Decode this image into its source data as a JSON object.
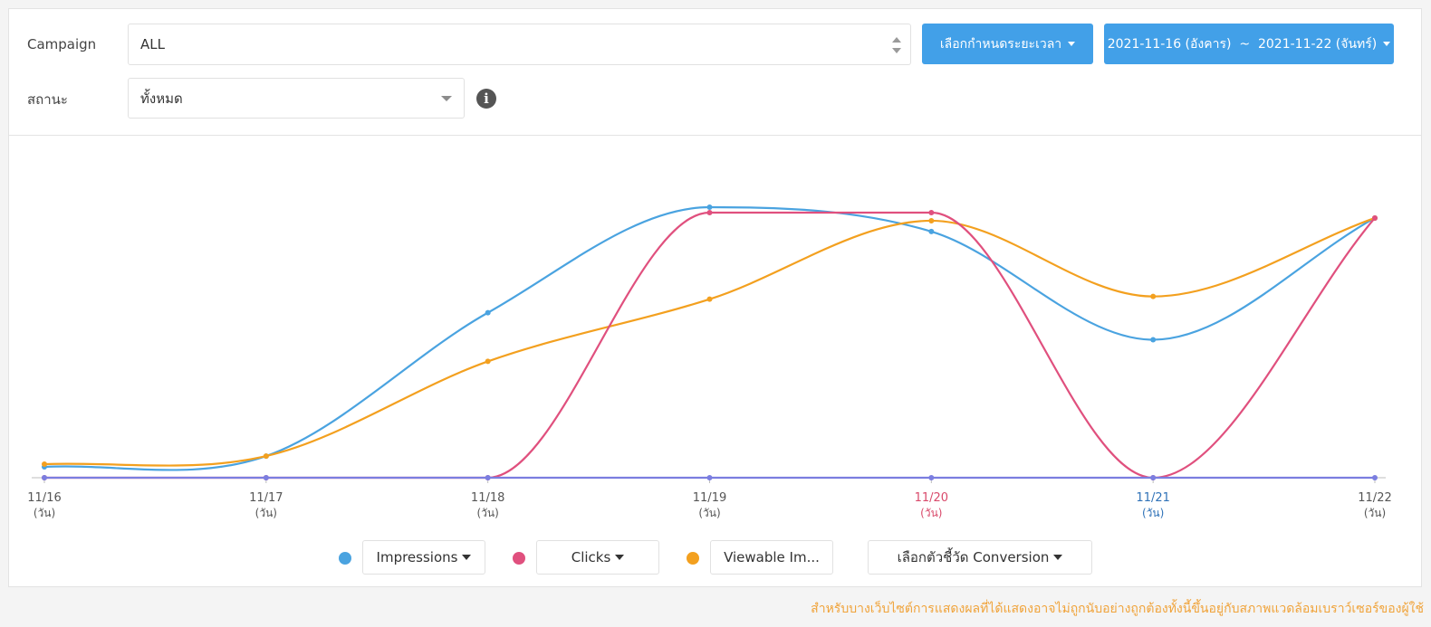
{
  "filters": {
    "campaign_label": "Campaign",
    "campaign_value": "ALL",
    "status_label": "สถานะ",
    "status_value": "ทั้งหมด",
    "period_button": "เลือกกำหนดระยะเวลา",
    "date_range_button": "2021-11-16 (อังคาร)  ~  2021-11-22 (จันทร์)",
    "info_icon": "info-icon"
  },
  "colors": {
    "impressions": "#4aa3e0",
    "clicks": "#e0507e",
    "viewable": "#f3a01f",
    "conversion": "#7b7ee0",
    "weekend_sat": "#d94a6b",
    "weekend_sun": "#2f72b8",
    "axis_text": "#555555",
    "button_blue": "#42a0e8"
  },
  "chart_data": {
    "type": "line",
    "categories": [
      "11/16",
      "11/17",
      "11/18",
      "11/19",
      "11/20",
      "11/21",
      "11/22"
    ],
    "sublabels": [
      "(วัน)",
      "(วัน)",
      "(วัน)",
      "(วัน)",
      "(วัน)",
      "(วัน)",
      "(วัน)"
    ],
    "ylim": [
      0,
      1
    ],
    "y_axis_labels_shown": false,
    "grid": false,
    "legend_placement": "bottom-center",
    "series": [
      {
        "name": "Impressions",
        "key": "impressions",
        "values": [
          0.04,
          0.08,
          0.61,
          1.0,
          0.91,
          0.51,
          0.96
        ]
      },
      {
        "name": "Clicks",
        "key": "clicks",
        "values": [
          0,
          0,
          0,
          0.98,
          0.98,
          0,
          0.96
        ]
      },
      {
        "name": "Viewable Im...",
        "key": "viewable",
        "values": [
          0.05,
          0.08,
          0.43,
          0.66,
          0.95,
          0.67,
          0.96
        ]
      },
      {
        "name": "Conversion",
        "key": "conversion",
        "values": [
          0,
          0,
          0,
          0,
          0,
          0,
          0
        ]
      }
    ]
  },
  "legend": {
    "impressions_label": "Impressions",
    "clicks_label": "Clicks",
    "viewable_label": "Viewable Im...",
    "conversion_label": "เลือกตัวชี้วัด Conversion"
  },
  "footnote": "สำหรับบางเว็บไซต์การแสดงผลที่ได้แสดงอาจไม่ถูกนับอย่างถูกต้องทั้งนี้ขึ้นอยู่กับสภาพแวดล้อมเบราว์เซอร์ของผู้ใช้"
}
